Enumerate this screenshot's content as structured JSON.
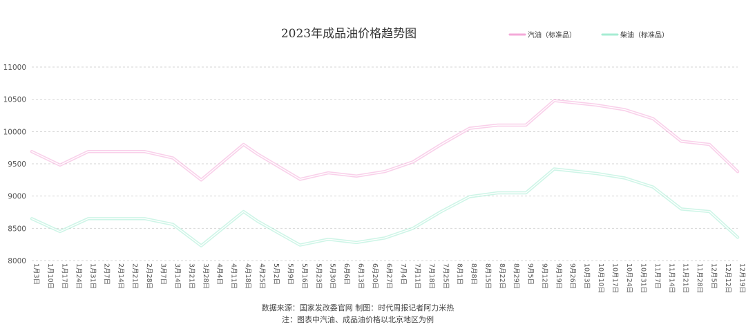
{
  "chart_data": {
    "type": "line",
    "title": "2023年成品油价格趋势图",
    "categories": [
      "1月3日",
      "1月10日",
      "1月17日",
      "1月24日",
      "1月31日",
      "2月7日",
      "2月14日",
      "2月21日",
      "2月28日",
      "3月7日",
      "3月14日",
      "3月21日",
      "3月28日",
      "4月4日",
      "4月11日",
      "4月18日",
      "4月25日",
      "5月2日",
      "5月9日",
      "5月16日",
      "5月23日",
      "5月30日",
      "6月6日",
      "6月13日",
      "6月20日",
      "6月27日",
      "7月4日",
      "7月11日",
      "7月18日",
      "7月25日",
      "8月1日",
      "8月8日",
      "8月15日",
      "8月22日",
      "8月29日",
      "9月5日",
      "9月12日",
      "9月19日",
      "9月26日",
      "10月3日",
      "10月10日",
      "10月17日",
      "10月24日",
      "10月31日",
      "11月7日",
      "11月14日",
      "11月21日",
      "11月28日",
      "12月5日",
      "12月12日",
      "12月19日"
    ],
    "series": [
      {
        "name": "汽油（标准品）",
        "color": "#f4a9d8",
        "points": [
          {
            "x": "1月3日",
            "y": 9690
          },
          {
            "x": "1月17日",
            "y": 9480
          },
          {
            "x": "1月31日",
            "y": 9690
          },
          {
            "x": "2月14日",
            "y": 9690
          },
          {
            "x": "2月28日",
            "y": 9690
          },
          {
            "x": "3月14日",
            "y": 9590
          },
          {
            "x": "3月28日",
            "y": 9250
          },
          {
            "x": "4月18日",
            "y": 9800
          },
          {
            "x": "4月25日",
            "y": 9650
          },
          {
            "x": "5月16日",
            "y": 9260
          },
          {
            "x": "5月30日",
            "y": 9360
          },
          {
            "x": "6月13日",
            "y": 9310
          },
          {
            "x": "6月27日",
            "y": 9380
          },
          {
            "x": "7月11日",
            "y": 9530
          },
          {
            "x": "7月25日",
            "y": 9800
          },
          {
            "x": "8月8日",
            "y": 10050
          },
          {
            "x": "8月22日",
            "y": 10100
          },
          {
            "x": "9月5日",
            "y": 10100
          },
          {
            "x": "9月19日",
            "y": 10480
          },
          {
            "x": "10月10日",
            "y": 10410
          },
          {
            "x": "10月24日",
            "y": 10340
          },
          {
            "x": "11月7日",
            "y": 10200
          },
          {
            "x": "11月21日",
            "y": 9850
          },
          {
            "x": "12月5日",
            "y": 9800
          },
          {
            "x": "12月19日",
            "y": 9380
          }
        ]
      },
      {
        "name": "柴油（标准品）",
        "color": "#a6ecd3",
        "points": [
          {
            "x": "1月3日",
            "y": 8650
          },
          {
            "x": "1月17日",
            "y": 8450
          },
          {
            "x": "1月31日",
            "y": 8650
          },
          {
            "x": "2月14日",
            "y": 8650
          },
          {
            "x": "2月28日",
            "y": 8650
          },
          {
            "x": "3月14日",
            "y": 8560
          },
          {
            "x": "3月28日",
            "y": 8230
          },
          {
            "x": "4月18日",
            "y": 8760
          },
          {
            "x": "4月25日",
            "y": 8610
          },
          {
            "x": "5月16日",
            "y": 8240
          },
          {
            "x": "5月30日",
            "y": 8330
          },
          {
            "x": "6月13日",
            "y": 8280
          },
          {
            "x": "6月27日",
            "y": 8350
          },
          {
            "x": "7月11日",
            "y": 8500
          },
          {
            "x": "7月25日",
            "y": 8760
          },
          {
            "x": "8月8日",
            "y": 8990
          },
          {
            "x": "8月22日",
            "y": 9050
          },
          {
            "x": "9月5日",
            "y": 9050
          },
          {
            "x": "9月19日",
            "y": 9420
          },
          {
            "x": "10月10日",
            "y": 9350
          },
          {
            "x": "10月24日",
            "y": 9280
          },
          {
            "x": "11月7日",
            "y": 9140
          },
          {
            "x": "11月21日",
            "y": 8800
          },
          {
            "x": "12月5日",
            "y": 8760
          },
          {
            "x": "12月19日",
            "y": 8360
          }
        ]
      }
    ],
    "yticks": [
      8000,
      8500,
      9000,
      9500,
      10000,
      10500,
      11000
    ],
    "ylim": [
      8000,
      11000
    ],
    "grid": true,
    "grid_color": "#d6d6d6",
    "legend": "top-right",
    "source_lines": [
      "数据来源：国家发改委官网 制图：时代周报记者阿力米热",
      "注：图表中汽油、成品油价格以北京地区为例"
    ]
  }
}
